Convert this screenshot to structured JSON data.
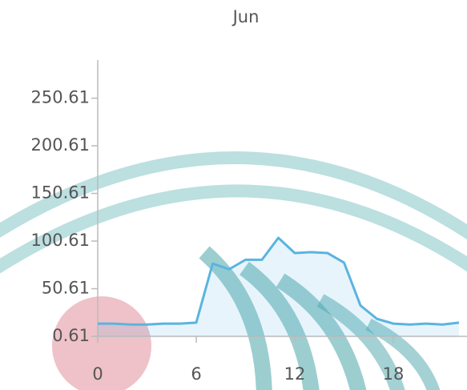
{
  "chart_data": {
    "type": "line",
    "title": "Jun",
    "x": [
      0,
      1,
      2,
      3,
      4,
      5,
      6,
      7,
      8,
      9,
      10,
      11,
      12,
      13,
      14,
      15,
      16,
      17,
      18,
      19,
      20,
      21,
      22
    ],
    "series": [
      {
        "name": "Jun",
        "color": "#5ab4e0",
        "values": [
          14,
          14,
          13,
          13,
          14,
          14,
          15,
          77,
          71,
          81,
          81,
          104,
          88,
          89,
          88,
          78,
          33,
          19,
          14,
          13,
          14,
          13,
          15
        ]
      }
    ],
    "xlim": [
      0,
      22.5
    ],
    "xticks": [
      0,
      6,
      12,
      18
    ],
    "ylim": [
      0.61,
      290.61
    ],
    "yticks": [
      0.61,
      50.61,
      100.61,
      150.61,
      200.61,
      250.61
    ],
    "area": true
  }
}
